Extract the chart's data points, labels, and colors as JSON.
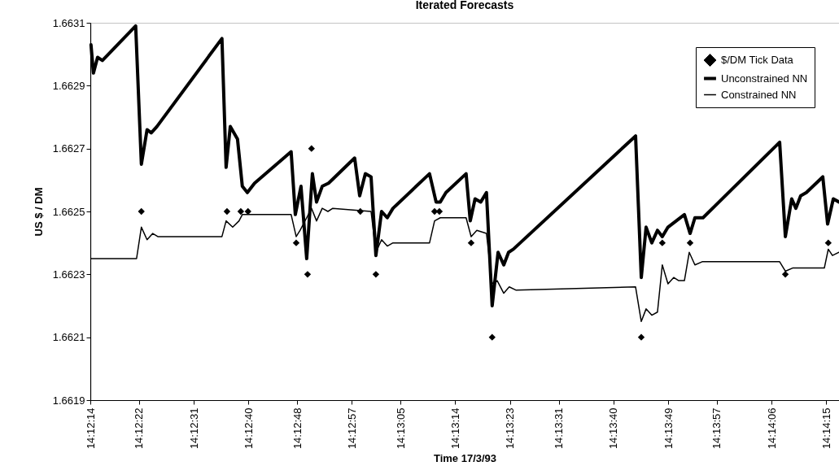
{
  "chart_data": {
    "type": "line",
    "title": "Iterated Forecasts",
    "xlabel": "Time 17/3/93",
    "ylabel": "US $ / DM",
    "legend": "top right",
    "xlim": [
      14.203889,
      14.23808
    ],
    "xticks": [
      {
        "value": 14.203889,
        "label": "14:12:14"
      },
      {
        "value": 14.206111,
        "label": "14:12:22"
      },
      {
        "value": 14.208611,
        "label": "14:12:31"
      },
      {
        "value": 14.211111,
        "label": "14:12:40"
      },
      {
        "value": 14.213333,
        "label": "14:12:48"
      },
      {
        "value": 14.215833,
        "label": "14:12:57"
      },
      {
        "value": 14.218056,
        "label": "14:13:05"
      },
      {
        "value": 14.220556,
        "label": "14:13:14"
      },
      {
        "value": 14.223056,
        "label": "14:13:23"
      },
      {
        "value": 14.225278,
        "label": "14:13:31"
      },
      {
        "value": 14.227778,
        "label": "14:13:40"
      },
      {
        "value": 14.230278,
        "label": "14:13:49"
      },
      {
        "value": 14.2325,
        "label": "14:13:57"
      },
      {
        "value": 14.235,
        "label": "14:14:06"
      },
      {
        "value": 14.2375,
        "label": "14:14:15"
      }
    ],
    "ylim": [
      1.6619,
      1.6631
    ],
    "yticks": [
      1.6619,
      1.6621,
      1.6623,
      1.6625,
      1.6627,
      1.6629,
      1.6631
    ],
    "series": [
      {
        "name": "$/DM Tick Data",
        "type": "scatter",
        "marker": "diamond",
        "color": "#000000",
        "x": [
          14.20622,
          14.21013,
          14.21076,
          14.21109,
          14.21329,
          14.21381,
          14.21399,
          14.21622,
          14.21693,
          14.21961,
          14.21983,
          14.22128,
          14.22224,
          14.22905,
          14.23001,
          14.23128,
          14.23563,
          14.23759
        ],
        "values": [
          1.6625,
          1.6625,
          1.6625,
          1.6625,
          1.6624,
          1.6623,
          1.6627,
          1.6625,
          1.6623,
          1.6625,
          1.6625,
          1.6624,
          1.6621,
          1.6621,
          1.6624,
          1.6624,
          1.6623,
          1.6624
        ]
      },
      {
        "name": "Unconstrained NN",
        "color": "#000000",
        "x": [
          14.20392,
          14.20403,
          14.20422,
          14.20444,
          14.20596,
          14.20622,
          14.20648,
          14.20667,
          14.20693,
          14.2099,
          14.21009,
          14.21028,
          14.21061,
          14.21083,
          14.21106,
          14.21139,
          14.21306,
          14.21325,
          14.21351,
          14.21377,
          14.21403,
          14.21422,
          14.21448,
          14.21477,
          14.21596,
          14.21619,
          14.21645,
          14.21671,
          14.21693,
          14.21719,
          14.21745,
          14.21771,
          14.21938,
          14.21968,
          14.21987,
          14.22013,
          14.22105,
          14.22124,
          14.22146,
          14.22172,
          14.22198,
          14.22224,
          14.22251,
          14.22277,
          14.22299,
          14.22321,
          14.22879,
          14.22905,
          14.22927,
          14.22953,
          14.22979,
          14.23001,
          14.23027,
          14.23102,
          14.23128,
          14.2315,
          14.23187,
          14.23537,
          14.23563,
          14.23592,
          14.23611,
          14.23633,
          14.23659,
          14.23734,
          14.23756,
          14.23782,
          14.23808
        ],
        "values": [
          1.66303,
          1.66294,
          1.66299,
          1.66298,
          1.66309,
          1.66265,
          1.66276,
          1.66275,
          1.66277,
          1.66305,
          1.66264,
          1.66277,
          1.66273,
          1.66258,
          1.66256,
          1.66259,
          1.66269,
          1.66249,
          1.66258,
          1.66235,
          1.66262,
          1.66253,
          1.66258,
          1.66259,
          1.66267,
          1.66255,
          1.66262,
          1.66261,
          1.66236,
          1.6625,
          1.66248,
          1.66251,
          1.66262,
          1.66253,
          1.66253,
          1.66256,
          1.66262,
          1.66247,
          1.66254,
          1.66253,
          1.66256,
          1.6622,
          1.66237,
          1.66233,
          1.66237,
          1.66238,
          1.66274,
          1.66229,
          1.66245,
          1.6624,
          1.66244,
          1.66242,
          1.66245,
          1.66249,
          1.66243,
          1.66248,
          1.66248,
          1.66272,
          1.66242,
          1.66254,
          1.66251,
          1.66255,
          1.66256,
          1.66261,
          1.66246,
          1.66254,
          1.66253
        ]
      },
      {
        "name": "Constrained NN",
        "color": "#000000",
        "x": [
          14.20392,
          14.206,
          14.20622,
          14.20648,
          14.20674,
          14.20697,
          14.2099,
          14.21009,
          14.21039,
          14.21068,
          14.21083,
          14.21106,
          14.21306,
          14.21329,
          14.21347,
          14.21377,
          14.21399,
          14.21422,
          14.21448,
          14.21474,
          14.21496,
          14.21671,
          14.21693,
          14.21719,
          14.21745,
          14.21771,
          14.21938,
          14.21961,
          14.21987,
          14.22105,
          14.22128,
          14.22154,
          14.22198,
          14.22224,
          14.22247,
          14.22277,
          14.22302,
          14.22332,
          14.22879,
          14.22905,
          14.22927,
          14.22953,
          14.22979,
          14.23001,
          14.23027,
          14.23053,
          14.23076,
          14.23102,
          14.23124,
          14.2315,
          14.23183,
          14.23537,
          14.23563,
          14.23596,
          14.23741,
          14.23759,
          14.23778,
          14.23808
        ],
        "values": [
          1.66235,
          1.66235,
          1.66245,
          1.66241,
          1.66243,
          1.66242,
          1.66242,
          1.66247,
          1.66245,
          1.66247,
          1.66249,
          1.66249,
          1.66249,
          1.66242,
          1.66244,
          1.66248,
          1.66251,
          1.66247,
          1.66251,
          1.6625,
          1.66251,
          1.6625,
          1.66237,
          1.66241,
          1.66239,
          1.6624,
          1.6624,
          1.66247,
          1.66248,
          1.66248,
          1.66242,
          1.66244,
          1.66243,
          1.66227,
          1.66228,
          1.66224,
          1.66226,
          1.66225,
          1.66226,
          1.66215,
          1.66219,
          1.66217,
          1.66218,
          1.66233,
          1.66227,
          1.66229,
          1.66228,
          1.66228,
          1.66237,
          1.66233,
          1.66234,
          1.66234,
          1.66231,
          1.66232,
          1.66232,
          1.66238,
          1.66236,
          1.66237
        ]
      }
    ]
  }
}
